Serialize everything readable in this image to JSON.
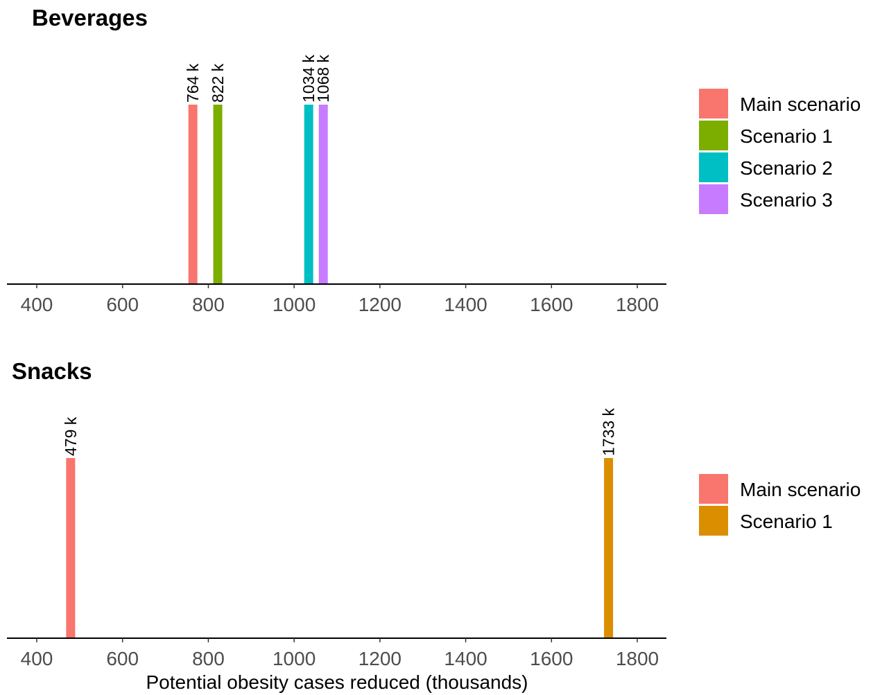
{
  "chart_data": [
    {
      "type": "bar",
      "title": "Beverages",
      "xlabel": "",
      "ylabel": "",
      "xlim": [
        330,
        1870
      ],
      "x_ticks": [
        "400",
        "600",
        "800",
        "1000",
        "1200",
        "1400",
        "1600",
        "1800"
      ],
      "x_tick_values": [
        400,
        600,
        800,
        1000,
        1200,
        1400,
        1600,
        1800
      ],
      "grid": false,
      "legend_position": "right",
      "series": [
        {
          "name": "Main scenario",
          "value": 764,
          "label": "764 k",
          "color": "#F8766D"
        },
        {
          "name": "Scenario 1",
          "value": 822,
          "label": "822 k",
          "color": "#7CAE00"
        },
        {
          "name": "Scenario 2",
          "value": 1034,
          "label": "1034 k",
          "color": "#00BFC4"
        },
        {
          "name": "Scenario 3",
          "value": 1068,
          "label": "1068 k",
          "color": "#C77CFF"
        }
      ]
    },
    {
      "type": "bar",
      "title": "Snacks",
      "xlabel": "Potential obesity cases reduced (thousands)",
      "ylabel": "",
      "xlim": [
        330,
        1870
      ],
      "x_ticks": [
        "400",
        "600",
        "800",
        "1000",
        "1200",
        "1400",
        "1600",
        "1800"
      ],
      "x_tick_values": [
        400,
        600,
        800,
        1000,
        1200,
        1400,
        1600,
        1800
      ],
      "grid": false,
      "legend_position": "right",
      "series": [
        {
          "name": "Main scenario",
          "value": 479,
          "label": "479 k",
          "color": "#F8766D"
        },
        {
          "name": "Scenario 1",
          "value": 1733,
          "label": "1733 k",
          "color": "#DB8E00"
        }
      ]
    }
  ]
}
